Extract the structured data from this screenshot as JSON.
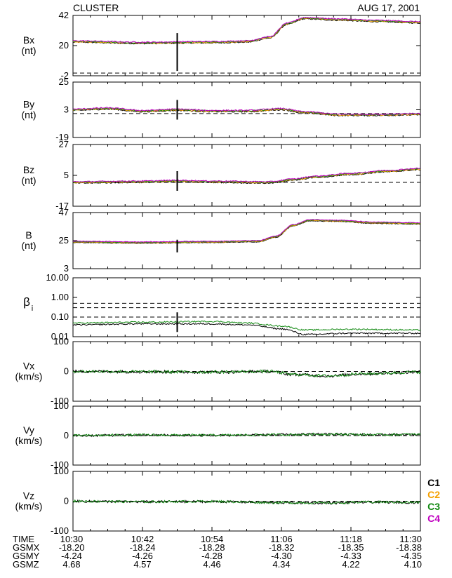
{
  "header": {
    "mission": "CLUSTER",
    "date": "AUG 17, 2001"
  },
  "legend": [
    {
      "label": "C1",
      "color": "#000000"
    },
    {
      "label": "C2",
      "color": "#f5a000"
    },
    {
      "label": "C3",
      "color": "#138a13"
    },
    {
      "label": "C4",
      "color": "#c000c0"
    }
  ],
  "footer": {
    "row_labels": [
      "TIME",
      "GSMX",
      "GSMY",
      "GSMZ"
    ],
    "columns": [
      {
        "time": "10:30",
        "gsmx": "-18.20",
        "gsmy": "-4.24",
        "gsmz": "4.68"
      },
      {
        "time": "10:42",
        "gsmx": "-18.24",
        "gsmy": "-4.26",
        "gsmz": "4.57"
      },
      {
        "time": "10:54",
        "gsmx": "-18.28",
        "gsmy": "-4.28",
        "gsmz": "4.46"
      },
      {
        "time": "11:06",
        "gsmx": "-18.32",
        "gsmy": "-4.30",
        "gsmz": "4.34"
      },
      {
        "time": "11:18",
        "gsmx": "-18.35",
        "gsmy": "-4.33",
        "gsmz": "4.22"
      },
      {
        "time": "11:30",
        "gsmx": "-18.38",
        "gsmy": "-4.35",
        "gsmz": "4.10"
      }
    ]
  },
  "chart_data": [
    {
      "type": "line",
      "id": "bx",
      "ylabel": [
        "Bx",
        "(nt)"
      ],
      "ylim": [
        -2,
        42
      ],
      "yticks": [
        "42",
        "20",
        "-2"
      ],
      "ref_lines": [
        0
      ],
      "marker_at": "10:48",
      "series": [
        {
          "colors": [
            "#000000",
            "#f5a000",
            "#138a13",
            "#c000c0"
          ],
          "noise": 0.4,
          "points": [
            [
              "10:30",
              23
            ],
            [
              "10:42",
              22
            ],
            [
              "10:54",
              22.5
            ],
            [
              "11:00",
              23
            ],
            [
              "11:04",
              26
            ],
            [
              "11:07",
              36
            ],
            [
              "11:10",
              40
            ],
            [
              "11:16",
              39
            ],
            [
              "11:22",
              38
            ],
            [
              "11:30",
              37
            ]
          ]
        }
      ]
    },
    {
      "type": "line",
      "id": "by",
      "ylabel": [
        "By",
        "(nt)"
      ],
      "ylim": [
        -19,
        25
      ],
      "yticks": [
        "25",
        "3",
        "-19"
      ],
      "ref_lines": [
        0
      ],
      "marker_at": "10:48",
      "series": [
        {
          "colors": [
            "#000000",
            "#f5a000",
            "#138a13",
            "#c000c0"
          ],
          "noise": 0.5,
          "points": [
            [
              "10:30",
              3
            ],
            [
              "10:36",
              4
            ],
            [
              "10:42",
              2
            ],
            [
              "10:48",
              3
            ],
            [
              "10:54",
              2
            ],
            [
              "11:00",
              2
            ],
            [
              "11:06",
              3.5
            ],
            [
              "11:10",
              1
            ],
            [
              "11:16",
              -1
            ],
            [
              "11:22",
              -1
            ],
            [
              "11:30",
              -0.5
            ]
          ]
        }
      ]
    },
    {
      "type": "line",
      "id": "bz",
      "ylabel": [
        "Bz",
        "(nt)"
      ],
      "ylim": [
        -17,
        27
      ],
      "yticks": [
        "27",
        "5",
        "-17"
      ],
      "ref_lines": [
        0
      ],
      "marker_at": "10:48",
      "series": [
        {
          "colors": [
            "#000000",
            "#f5a000",
            "#138a13",
            "#c000c0"
          ],
          "noise": 0.4,
          "points": [
            [
              "10:30",
              0
            ],
            [
              "10:42",
              0.5
            ],
            [
              "10:48",
              1
            ],
            [
              "10:54",
              0.5
            ],
            [
              "11:04",
              0
            ],
            [
              "11:08",
              2
            ],
            [
              "11:12",
              4
            ],
            [
              "11:18",
              6
            ],
            [
              "11:24",
              8
            ],
            [
              "11:30",
              9.5
            ]
          ]
        }
      ]
    },
    {
      "type": "line",
      "id": "b",
      "ylabel": [
        "B",
        "(nt)"
      ],
      "ylim": [
        3,
        47
      ],
      "yticks": [
        "47",
        "25",
        "3"
      ],
      "ref_lines": [],
      "marker_at": "10:48",
      "series": [
        {
          "colors": [
            "#000000",
            "#f5a000",
            "#138a13",
            "#c000c0"
          ],
          "noise": 0.25,
          "points": [
            [
              "10:30",
              24
            ],
            [
              "10:42",
              23.5
            ],
            [
              "10:54",
              24
            ],
            [
              "11:02",
              24.5
            ],
            [
              "11:05",
              28
            ],
            [
              "11:08",
              37
            ],
            [
              "11:11",
              41
            ],
            [
              "11:16",
              40.5
            ],
            [
              "11:22",
              39
            ],
            [
              "11:30",
              38.5
            ]
          ]
        }
      ]
    },
    {
      "type": "line",
      "id": "beta",
      "ylabel": [
        "β",
        "i"
      ],
      "ylog": true,
      "ylim": [
        0.01,
        10
      ],
      "yticks": [
        "10.00",
        "1.00",
        "0.10",
        "0.01"
      ],
      "ref_lines": [
        0.5,
        0.3,
        0.1
      ],
      "marker_at": "10:48",
      "series": [
        {
          "colors": [
            "#138a13"
          ],
          "noise": 0.04,
          "points": [
            [
              "10:30",
              0.05
            ],
            [
              "10:42",
              0.055
            ],
            [
              "10:54",
              0.06
            ],
            [
              "11:00",
              0.05
            ],
            [
              "11:06",
              0.035
            ],
            [
              "11:10",
              0.022
            ],
            [
              "11:18",
              0.024
            ],
            [
              "11:30",
              0.022
            ]
          ]
        },
        {
          "colors": [
            "#000000"
          ],
          "noise": 0.04,
          "points": [
            [
              "10:30",
              0.04
            ],
            [
              "10:42",
              0.045
            ],
            [
              "10:54",
              0.045
            ],
            [
              "11:00",
              0.04
            ],
            [
              "11:06",
              0.025
            ],
            [
              "11:10",
              0.013
            ],
            [
              "11:18",
              0.015
            ],
            [
              "11:30",
              0.015
            ]
          ]
        }
      ]
    },
    {
      "type": "line",
      "id": "vx",
      "ylabel": [
        "Vx",
        "(km/s)"
      ],
      "ylim": [
        -100,
        100
      ],
      "yticks": [
        "100",
        "0",
        "-100"
      ],
      "ref_lines": [
        0
      ],
      "marker_at": null,
      "series": [
        {
          "colors": [
            "#000000",
            "#138a13"
          ],
          "noise": 5,
          "points": [
            [
              "10:30",
              0
            ],
            [
              "10:54",
              -2
            ],
            [
              "11:04",
              0
            ],
            [
              "11:08",
              -10
            ],
            [
              "11:14",
              -15
            ],
            [
              "11:20",
              -8
            ],
            [
              "11:30",
              -2
            ]
          ]
        }
      ]
    },
    {
      "type": "line",
      "id": "vy",
      "ylabel": [
        "Vy",
        "(km/s)"
      ],
      "ylim": [
        -100,
        100
      ],
      "yticks": [
        "100",
        "0",
        "-100"
      ],
      "ref_lines": [
        0
      ],
      "marker_at": null,
      "series": [
        {
          "colors": [
            "#000000",
            "#138a13"
          ],
          "noise": 4,
          "points": [
            [
              "10:30",
              0
            ],
            [
              "10:42",
              2
            ],
            [
              "10:54",
              1
            ],
            [
              "11:06",
              3
            ],
            [
              "11:14",
              5
            ],
            [
              "11:22",
              3
            ],
            [
              "11:30",
              4
            ]
          ]
        }
      ]
    },
    {
      "type": "line",
      "id": "vz",
      "ylabel": [
        "Vz",
        "(km/s)"
      ],
      "ylim": [
        -100,
        100
      ],
      "yticks": [
        "100",
        "0",
        "-100"
      ],
      "ref_lines": [
        0
      ],
      "marker_at": null,
      "series": [
        {
          "colors": [
            "#000000",
            "#138a13"
          ],
          "noise": 4,
          "points": [
            [
              "10:30",
              0
            ],
            [
              "10:42",
              -2
            ],
            [
              "10:54",
              -1
            ],
            [
              "11:06",
              -5
            ],
            [
              "11:14",
              -6
            ],
            [
              "11:22",
              -3
            ],
            [
              "11:30",
              -4
            ]
          ]
        }
      ]
    }
  ]
}
